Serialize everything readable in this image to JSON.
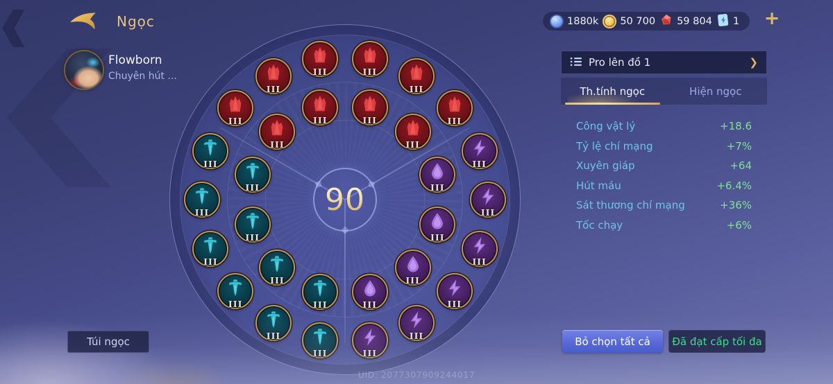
{
  "topbar": {
    "title": "Ngọc",
    "currencies": [
      {
        "icon": "blue-coin-icon",
        "value": "1880k"
      },
      {
        "icon": "gold-coin-icon",
        "value": "50 700"
      },
      {
        "icon": "red-gem-icon",
        "value": "59 804"
      },
      {
        "icon": "card-icon",
        "value": "1"
      }
    ],
    "add_label": "+"
  },
  "profile": {
    "name": "Flowborn",
    "subtitle": "Chuyên hút ..."
  },
  "wheel": {
    "center_value": "90",
    "runes": [
      {
        "type": "red-attack",
        "glyph": "flame",
        "color": "red",
        "ring": "outer",
        "angle_deg": -50,
        "level": "III"
      },
      {
        "type": "red-attack",
        "glyph": "flame",
        "color": "red",
        "ring": "outer",
        "angle_deg": -30,
        "level": "III"
      },
      {
        "type": "red-attack",
        "glyph": "flame",
        "color": "red",
        "ring": "outer",
        "angle_deg": -10,
        "level": "III"
      },
      {
        "type": "red-attack",
        "glyph": "flame",
        "color": "red",
        "ring": "outer",
        "angle_deg": 10,
        "level": "III"
      },
      {
        "type": "red-attack",
        "glyph": "flame",
        "color": "red",
        "ring": "outer",
        "angle_deg": 30,
        "level": "III"
      },
      {
        "type": "red-attack",
        "glyph": "flame",
        "color": "red",
        "ring": "outer",
        "angle_deg": 50,
        "level": "III"
      },
      {
        "type": "red-attack",
        "glyph": "flame",
        "color": "red",
        "ring": "inner",
        "angle_deg": -45,
        "level": "III"
      },
      {
        "type": "red-attack",
        "glyph": "flame",
        "color": "red",
        "ring": "inner",
        "angle_deg": -15,
        "level": "III"
      },
      {
        "type": "red-attack",
        "glyph": "flame",
        "color": "red",
        "ring": "inner",
        "angle_deg": 15,
        "level": "III"
      },
      {
        "type": "red-attack",
        "glyph": "flame",
        "color": "red",
        "ring": "inner",
        "angle_deg": 45,
        "level": "III"
      },
      {
        "type": "teal-sword",
        "glyph": "sword",
        "color": "teal",
        "ring": "outer",
        "angle_deg": -70,
        "level": "III"
      },
      {
        "type": "teal-sword",
        "glyph": "sword",
        "color": "teal",
        "ring": "outer",
        "angle_deg": -90,
        "level": "III"
      },
      {
        "type": "teal-sword",
        "glyph": "sword",
        "color": "teal",
        "ring": "outer",
        "angle_deg": -110,
        "level": "III"
      },
      {
        "type": "teal-sword",
        "glyph": "sword",
        "color": "teal",
        "ring": "outer",
        "angle_deg": -130,
        "level": "III"
      },
      {
        "type": "teal-sword",
        "glyph": "sword",
        "color": "teal",
        "ring": "outer",
        "angle_deg": -150,
        "level": "III"
      },
      {
        "type": "teal-sword",
        "glyph": "sword",
        "color": "teal",
        "ring": "outer",
        "angle_deg": -170,
        "level": "III"
      },
      {
        "type": "teal-sword",
        "glyph": "sword",
        "color": "teal",
        "ring": "inner",
        "angle_deg": -75,
        "level": "III"
      },
      {
        "type": "teal-sword",
        "glyph": "sword",
        "color": "teal",
        "ring": "inner",
        "angle_deg": -105,
        "level": "III"
      },
      {
        "type": "teal-sword",
        "glyph": "sword",
        "color": "teal",
        "ring": "inner",
        "angle_deg": -135,
        "level": "III"
      },
      {
        "type": "teal-sword",
        "glyph": "sword",
        "color": "teal",
        "ring": "inner",
        "angle_deg": -165,
        "level": "III"
      },
      {
        "type": "purple-bolt",
        "glyph": "bolt",
        "color": "purple",
        "ring": "outer",
        "angle_deg": 70,
        "level": "III"
      },
      {
        "type": "purple-bolt",
        "glyph": "bolt",
        "color": "purple",
        "ring": "outer",
        "angle_deg": 90,
        "level": "III"
      },
      {
        "type": "purple-bolt",
        "glyph": "bolt",
        "color": "purple",
        "ring": "outer",
        "angle_deg": 110,
        "level": "III"
      },
      {
        "type": "purple-bolt",
        "glyph": "bolt",
        "color": "purple",
        "ring": "outer",
        "angle_deg": 130,
        "level": "III"
      },
      {
        "type": "purple-bolt",
        "glyph": "bolt",
        "color": "purple",
        "ring": "outer",
        "angle_deg": 150,
        "level": "III"
      },
      {
        "type": "purple-bolt",
        "glyph": "bolt",
        "color": "purple",
        "ring": "outer",
        "angle_deg": 170,
        "level": "III"
      },
      {
        "type": "purple-drop",
        "glyph": "drop",
        "color": "purple",
        "ring": "inner",
        "angle_deg": 75,
        "level": "III"
      },
      {
        "type": "purple-drop",
        "glyph": "drop",
        "color": "purple",
        "ring": "inner",
        "angle_deg": 105,
        "level": "III"
      },
      {
        "type": "purple-drop",
        "glyph": "drop",
        "color": "purple",
        "ring": "inner",
        "angle_deg": 135,
        "level": "III"
      },
      {
        "type": "purple-drop",
        "glyph": "drop",
        "color": "purple",
        "ring": "inner",
        "angle_deg": 165,
        "level": "III"
      }
    ]
  },
  "panel": {
    "header": {
      "title": "Pro lên đồ 1",
      "chevron": "❯"
    },
    "tabs": [
      {
        "label": "Th.tính ngọc",
        "active": true
      },
      {
        "label": "Hiện ngọc",
        "active": false
      }
    ],
    "stats": [
      {
        "label": "Công vật lý",
        "value": "+18.6"
      },
      {
        "label": "Tỷ lệ chí mạng",
        "value": "+7%"
      },
      {
        "label": "Xuyên giáp",
        "value": "+64"
      },
      {
        "label": "Hút máu",
        "value": "+6.4%"
      },
      {
        "label": "Sát thương chí mạng",
        "value": "+36%"
      },
      {
        "label": "Tốc chạy",
        "value": "+6%"
      }
    ],
    "buttons": {
      "deselect": "Bỏ chọn tất cả",
      "max_level": "Đã đạt cấp tối đa"
    }
  },
  "footer": {
    "bag_button": "Túi ngọc",
    "uid": "UID: 2077307909244017"
  },
  "colors": {
    "accent_gold": "#e5c57b",
    "stat_label": "#6fc3e8",
    "stat_value": "#7de390",
    "rune_red": "#e23f44",
    "rune_teal": "#36c2d4",
    "rune_purple": "#a873e0",
    "button_blue": "#5668d6",
    "max_green": "#41da8c"
  }
}
